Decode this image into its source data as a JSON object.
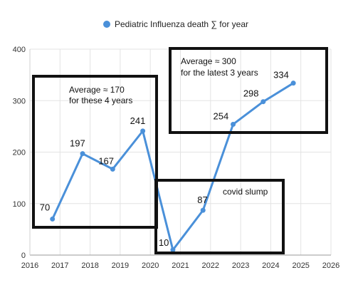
{
  "chart_data": {
    "type": "line",
    "series": [
      {
        "name": "Pediatric Influenza death ∑ for year",
        "color": "#4a90d9",
        "x": [
          2016.75,
          2017.75,
          2018.75,
          2019.75,
          2020.75,
          2021.75,
          2022.75,
          2023.75,
          2024.75
        ],
        "values": [
          70,
          197,
          167,
          241,
          10,
          87,
          254,
          298,
          334
        ],
        "labels": [
          "70",
          "197",
          "167",
          "241",
          "10",
          "87",
          "254",
          "298",
          "334"
        ]
      }
    ],
    "xlim": [
      2016,
      2026
    ],
    "ylim": [
      0,
      400
    ],
    "xticks": [
      "2016",
      "2017",
      "2018",
      "2019",
      "2020",
      "2021",
      "2022",
      "2023",
      "2024",
      "2025",
      "2026"
    ],
    "yticks": [
      "0",
      "100",
      "200",
      "300",
      "400"
    ],
    "grid": true,
    "legend": "top-center",
    "annotations": [
      {
        "lines": [
          "Average ≈ 170",
          "for these 4 years"
        ]
      },
      {
        "lines": [
          "covid slump"
        ]
      },
      {
        "lines": [
          "Average ≈ 300",
          "for the latest 3 years"
        ]
      }
    ]
  }
}
